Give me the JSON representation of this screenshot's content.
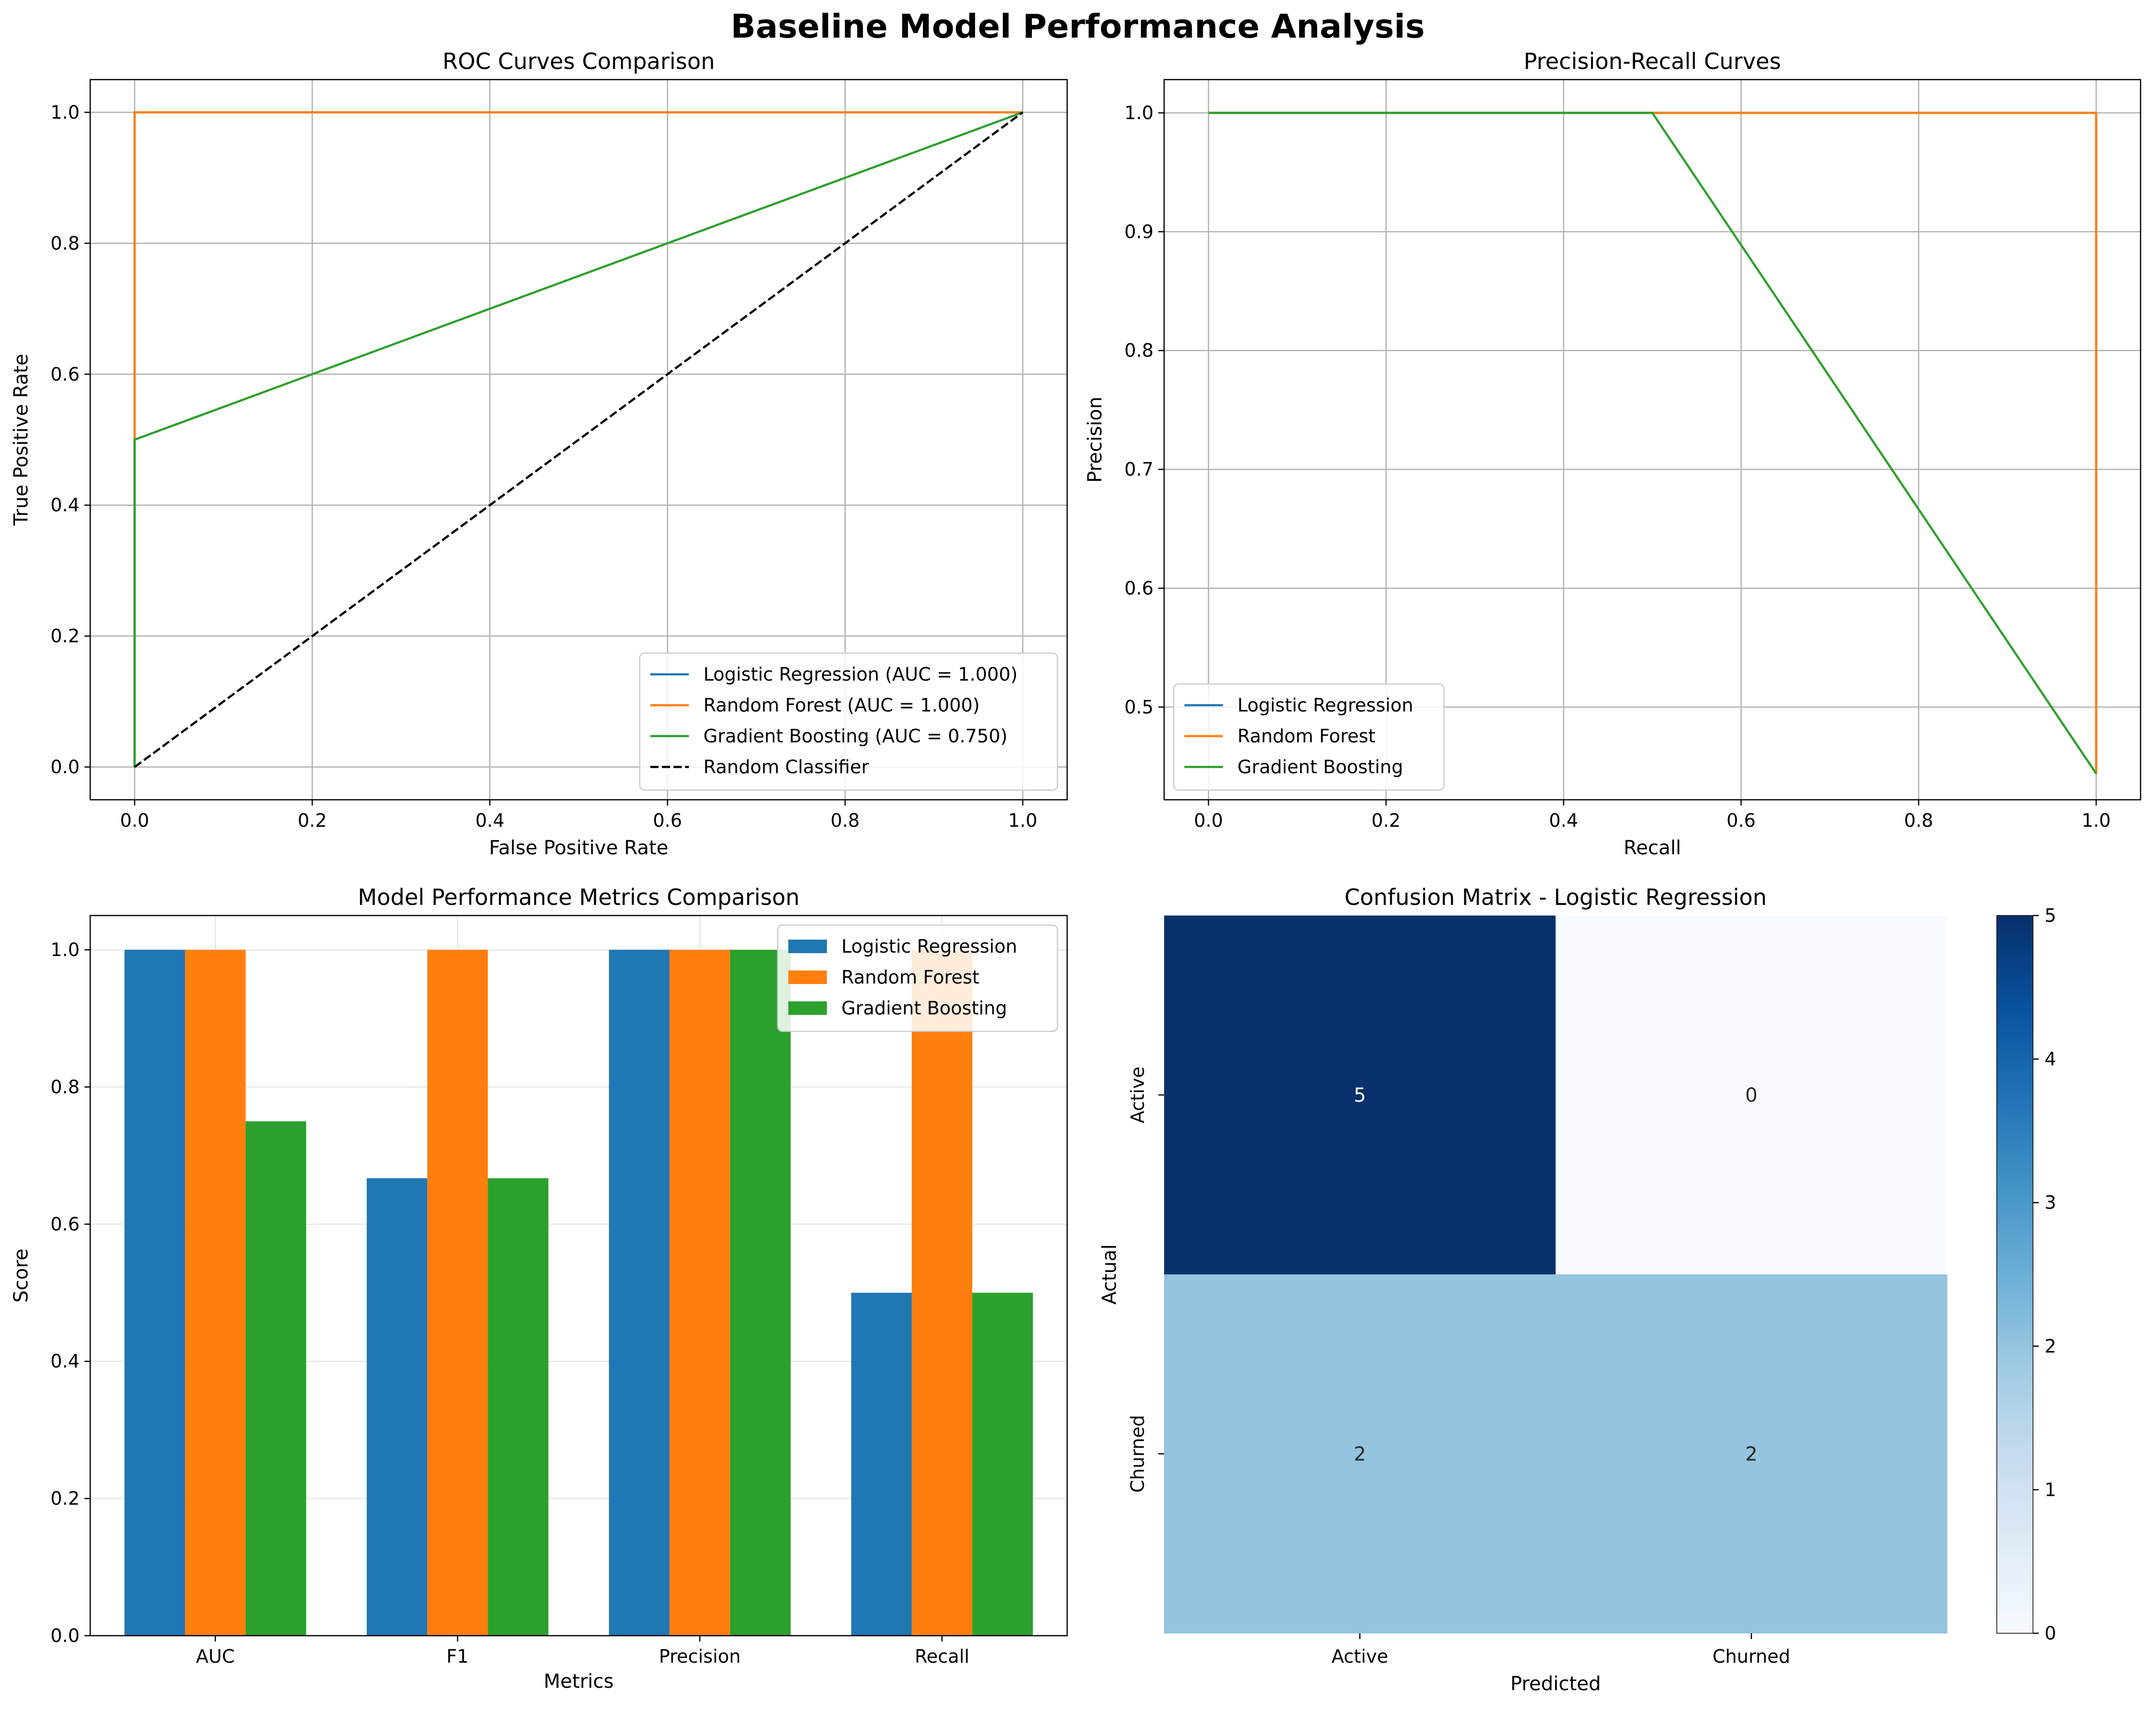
{
  "figure": {
    "suptitle": "Baseline Model Performance Analysis"
  },
  "colors": {
    "logistic_regression": "#1f77b4",
    "random_forest": "#ff7f0e",
    "gradient_boosting": "#2ca02c",
    "random_classifier": "#000000",
    "grid": "#b0b0b0",
    "cmap": [
      "#f7fbff",
      "#deebf7",
      "#c6dbef",
      "#9ecae1",
      "#6baed6",
      "#4292c6",
      "#2171b5",
      "#08519c",
      "#08306b"
    ]
  },
  "chart_data": [
    {
      "id": "roc",
      "type": "line",
      "title": "ROC Curves Comparison",
      "xlabel": "False Positive Rate",
      "ylabel": "True Positive Rate",
      "xlim": [
        -0.05,
        1.05
      ],
      "ylim": [
        -0.05,
        1.05
      ],
      "xticks": [
        0.0,
        0.2,
        0.4,
        0.6,
        0.8,
        1.0
      ],
      "yticks": [
        0.0,
        0.2,
        0.4,
        0.6,
        0.8,
        1.0
      ],
      "grid": true,
      "legend_position": "lower-right",
      "series": [
        {
          "name": "Logistic Regression (AUC = 1.000)",
          "color": "#1f77b4",
          "dash": "solid",
          "x": [
            0.0,
            0.0,
            1.0
          ],
          "y": [
            0.0,
            1.0,
            1.0
          ]
        },
        {
          "name": "Random Forest (AUC = 1.000)",
          "color": "#ff7f0e",
          "dash": "solid",
          "x": [
            0.0,
            0.0,
            1.0
          ],
          "y": [
            0.0,
            1.0,
            1.0
          ]
        },
        {
          "name": "Gradient Boosting (AUC = 0.750)",
          "color": "#2ca02c",
          "dash": "solid",
          "x": [
            0.0,
            0.0,
            1.0
          ],
          "y": [
            0.0,
            0.5,
            1.0
          ]
        },
        {
          "name": "Random Classifier",
          "color": "#000000",
          "dash": "dashed",
          "x": [
            0.0,
            1.0
          ],
          "y": [
            0.0,
            1.0
          ]
        }
      ]
    },
    {
      "id": "pr",
      "type": "line",
      "title": "Precision-Recall Curves",
      "xlabel": "Recall",
      "ylabel": "Precision",
      "xlim": [
        -0.05,
        1.05
      ],
      "ylim": [
        0.422,
        1.028
      ],
      "xticks": [
        0.0,
        0.2,
        0.4,
        0.6,
        0.8,
        1.0
      ],
      "yticks": [
        0.5,
        0.6,
        0.7,
        0.8,
        0.9,
        1.0
      ],
      "grid": true,
      "legend_position": "lower-left",
      "series": [
        {
          "name": "Logistic Regression",
          "color": "#1f77b4",
          "dash": "solid",
          "x": [
            0.0,
            1.0,
            1.0
          ],
          "y": [
            1.0,
            1.0,
            0.444
          ]
        },
        {
          "name": "Random Forest",
          "color": "#ff7f0e",
          "dash": "solid",
          "x": [
            0.0,
            1.0,
            1.0
          ],
          "y": [
            1.0,
            1.0,
            0.444
          ]
        },
        {
          "name": "Gradient Boosting",
          "color": "#2ca02c",
          "dash": "solid",
          "x": [
            0.0,
            0.5,
            1.0
          ],
          "y": [
            1.0,
            1.0,
            0.444
          ]
        }
      ]
    },
    {
      "id": "metrics",
      "type": "bar",
      "title": "Model Performance Metrics Comparison",
      "xlabel": "Metrics",
      "ylabel": "Score",
      "ylim": [
        0,
        1.05
      ],
      "yticks": [
        0.0,
        0.2,
        0.4,
        0.6,
        0.8,
        1.0
      ],
      "grid": true,
      "legend_position": "upper-right",
      "categories": [
        "AUC",
        "F1",
        "Precision",
        "Recall"
      ],
      "series": [
        {
          "name": "Logistic Regression",
          "color": "#1f77b4",
          "values": [
            1.0,
            0.667,
            1.0,
            0.5
          ]
        },
        {
          "name": "Random Forest",
          "color": "#ff7f0e",
          "values": [
            1.0,
            1.0,
            1.0,
            1.0
          ]
        },
        {
          "name": "Gradient Boosting",
          "color": "#2ca02c",
          "values": [
            0.75,
            0.667,
            1.0,
            0.5
          ]
        }
      ]
    },
    {
      "id": "confusion",
      "type": "heatmap",
      "title": "Confusion Matrix - Logistic Regression",
      "xlabel": "Predicted",
      "ylabel": "Actual",
      "x_categories": [
        "Active",
        "Churned"
      ],
      "y_categories": [
        "Active",
        "Churned"
      ],
      "matrix": [
        [
          5,
          0
        ],
        [
          2,
          2
        ]
      ],
      "colorbar": {
        "min": 0,
        "max": 5,
        "ticks": [
          0,
          1,
          2,
          3,
          4,
          5
        ]
      },
      "colormap": "Blues"
    }
  ]
}
